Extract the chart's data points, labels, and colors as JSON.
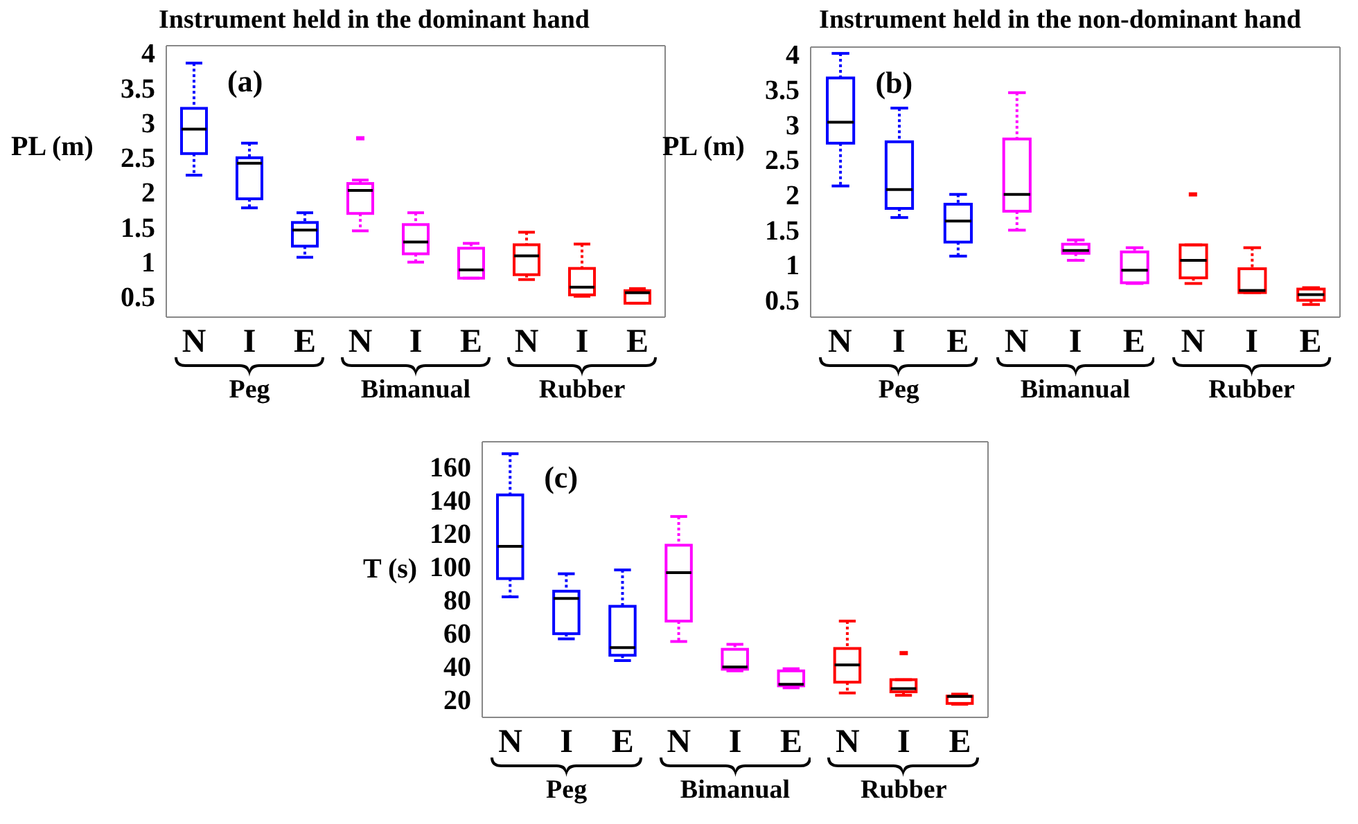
{
  "chart_data": [
    {
      "type": "box",
      "title": "Instrument held in the dominant hand",
      "ylabel": "PL (m)",
      "categories": [
        "N",
        "I",
        "E",
        "N",
        "I",
        "E",
        "N",
        "I",
        "E"
      ],
      "colors": [
        "#0000ff",
        "#0000ff",
        "#0000ff",
        "#ff00ff",
        "#ff00ff",
        "#ff00ff",
        "#ff0000",
        "#ff0000",
        "#ff0000"
      ],
      "ylim": [
        0.2,
        4.1
      ],
      "yticks": [
        0.5,
        1,
        1.5,
        2,
        2.5,
        3,
        3.5,
        4
      ],
      "grid": false,
      "line_style": "dotted",
      "annotations": [
        "(a)",
        "Peg",
        "Bimanual",
        "Rubber"
      ],
      "boxes": [
        {
          "low": 2.24,
          "q1": 2.55,
          "median": 2.9,
          "q3": 3.2,
          "high": 3.85
        },
        {
          "low": 1.77,
          "q1": 1.9,
          "median": 2.41,
          "q3": 2.49,
          "high": 2.7
        },
        {
          "low": 1.06,
          "q1": 1.22,
          "median": 1.45,
          "q3": 1.56,
          "high": 1.7
        },
        {
          "low": 1.44,
          "q1": 1.69,
          "median": 2.02,
          "q3": 2.12,
          "high": 2.17,
          "outliers": [
            2.77
          ]
        },
        {
          "low": 0.99,
          "q1": 1.11,
          "median": 1.28,
          "q3": 1.53,
          "high": 1.7
        },
        {
          "low": 0.76,
          "q1": 0.76,
          "median": 0.88,
          "q3": 1.19,
          "high": 1.26
        },
        {
          "low": 0.74,
          "q1": 0.81,
          "median": 1.08,
          "q3": 1.24,
          "high": 1.42
        },
        {
          "low": 0.5,
          "q1": 0.52,
          "median": 0.63,
          "q3": 0.9,
          "high": 1.25
        },
        {
          "low": 0.4,
          "q1": 0.4,
          "median": 0.55,
          "q3": 0.58,
          "high": 0.61
        }
      ]
    },
    {
      "type": "box",
      "title": "Instrument held in the non-dominant hand",
      "ylabel": "PL (m)",
      "categories": [
        "N",
        "I",
        "E",
        "N",
        "I",
        "E",
        "N",
        "I",
        "E"
      ],
      "colors": [
        "#0000ff",
        "#0000ff",
        "#0000ff",
        "#ff00ff",
        "#ff00ff",
        "#ff00ff",
        "#ff0000",
        "#ff0000",
        "#ff0000"
      ],
      "ylim": [
        0.25,
        4.1
      ],
      "yticks": [
        0.5,
        1,
        1.5,
        2,
        2.5,
        3,
        3.5,
        4
      ],
      "grid": false,
      "line_style": "dotted",
      "annotations": [
        "(b)",
        "Peg",
        "Bimanual",
        "Rubber"
      ],
      "boxes": [
        {
          "low": 2.12,
          "q1": 2.73,
          "median": 3.03,
          "q3": 3.66,
          "high": 4.01
        },
        {
          "low": 1.67,
          "q1": 1.8,
          "median": 2.07,
          "q3": 2.75,
          "high": 3.23
        },
        {
          "low": 1.12,
          "q1": 1.32,
          "median": 1.62,
          "q3": 1.86,
          "high": 2.0
        },
        {
          "low": 1.49,
          "q1": 1.76,
          "median": 2.0,
          "q3": 2.79,
          "high": 3.45
        },
        {
          "low": 1.06,
          "q1": 1.16,
          "median": 1.2,
          "q3": 1.29,
          "high": 1.35
        },
        {
          "low": 0.73,
          "q1": 0.74,
          "median": 0.92,
          "q3": 1.18,
          "high": 1.24
        },
        {
          "low": 0.73,
          "q1": 0.81,
          "median": 1.06,
          "q3": 1.28,
          "high": 1.28,
          "outliers": [
            2.0
          ]
        },
        {
          "low": 0.6,
          "q1": 0.6,
          "median": 0.63,
          "q3": 0.94,
          "high": 1.24
        },
        {
          "low": 0.43,
          "q1": 0.49,
          "median": 0.57,
          "q3": 0.65,
          "high": 0.67
        }
      ]
    },
    {
      "type": "box",
      "ylabel": "T (s)",
      "categories": [
        "N",
        "I",
        "E",
        "N",
        "I",
        "E",
        "N",
        "I",
        "E"
      ],
      "colors": [
        "#0000ff",
        "#0000ff",
        "#0000ff",
        "#ff00ff",
        "#ff00ff",
        "#ff00ff",
        "#ff0000",
        "#ff0000",
        "#ff0000"
      ],
      "ylim": [
        9,
        175
      ],
      "yticks": [
        20,
        40,
        60,
        80,
        100,
        120,
        140,
        160
      ],
      "grid": false,
      "line_style": "dotted",
      "annotations": [
        "(c)",
        "Peg",
        "Bimanual",
        "Rubber"
      ],
      "boxes": [
        {
          "low": 81.6,
          "q1": 92.6,
          "median": 112,
          "q3": 143,
          "high": 167.8
        },
        {
          "low": 56.3,
          "q1": 59.4,
          "median": 80.6,
          "q3": 85,
          "high": 95.5
        },
        {
          "low": 43.2,
          "q1": 46.4,
          "median": 51,
          "q3": 75.9,
          "high": 97.8
        },
        {
          "low": 54.7,
          "q1": 67,
          "median": 96.2,
          "q3": 112.7,
          "high": 130
        },
        {
          "low": 37,
          "q1": 38,
          "median": 39.3,
          "q3": 50,
          "high": 53
        },
        {
          "low": 26.8,
          "q1": 28,
          "median": 28.9,
          "q3": 37,
          "high": 38.3
        },
        {
          "low": 23.7,
          "q1": 30.2,
          "median": 40.6,
          "q3": 50.5,
          "high": 67
        },
        {
          "low": 22.3,
          "q1": 24.4,
          "median": 26.3,
          "q3": 31.7,
          "high": 31.7,
          "outliers": [
            47.7
          ]
        },
        {
          "low": 16.9,
          "q1": 17.4,
          "median": 21.6,
          "q3": 21.8,
          "high": 23
        }
      ]
    }
  ]
}
